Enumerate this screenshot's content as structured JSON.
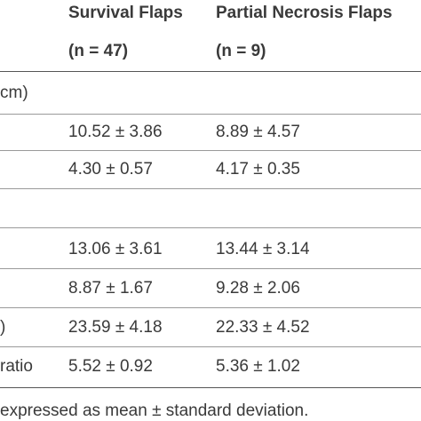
{
  "header": {
    "col1_line1": "Survival Flaps",
    "col1_line2": "(n = 47)",
    "col2_line1": "Partial Necrosis Flaps",
    "col2_line2": "(n = 9)"
  },
  "rows": [
    {
      "label": "cm)",
      "col1": "",
      "col2": ""
    },
    {
      "label": "",
      "col1": "10.52 ± 3.86",
      "col2": "8.89 ± 4.57"
    },
    {
      "label": "",
      "col1": "4.30 ± 0.57",
      "col2": "4.17 ± 0.35"
    },
    {
      "label": "",
      "col1": "",
      "col2": ""
    },
    {
      "label": "",
      "col1": "13.06 ± 3.61",
      "col2": "13.44 ± 3.14"
    },
    {
      "label": "",
      "col1": "8.87 ± 1.67",
      "col2": "9.28 ± 2.06"
    },
    {
      "label": ")",
      "col1": "23.59 ± 4.18",
      "col2": "22.33 ± 4.52"
    },
    {
      "label": "ratio",
      "col1": "5.52 ± 0.92",
      "col2": "5.36 ± 1.02"
    }
  ],
  "footnote": "expressed as mean ± standard deviation."
}
